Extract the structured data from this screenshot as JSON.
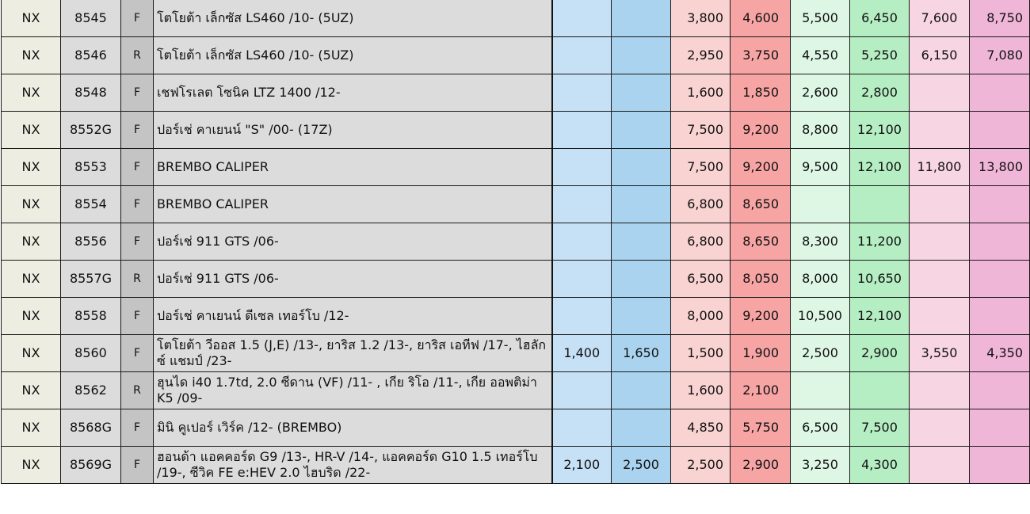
{
  "rows": [
    {
      "brand": "NX",
      "code": "8545",
      "pos": "F",
      "desc": "โตโยต้า เล็กซัส LS460 /10- (5UZ)",
      "prices": [
        "",
        "",
        "3,800",
        "4,600",
        "5,500",
        "6,450",
        "7,600",
        "8,750"
      ]
    },
    {
      "brand": "NX",
      "code": "8546",
      "pos": "R",
      "desc": "โตโยต้า เล็กซัส LS460 /10- (5UZ)",
      "prices": [
        "",
        "",
        "2,950",
        "3,750",
        "4,550",
        "5,250",
        "6,150",
        "7,080"
      ]
    },
    {
      "brand": "NX",
      "code": "8548",
      "pos": "F",
      "desc": "เชฟโรเลต โซนิค LTZ 1400 /12-",
      "prices": [
        "",
        "",
        "1,600",
        "1,850",
        "2,600",
        "2,800",
        "",
        ""
      ]
    },
    {
      "brand": "NX",
      "code": "8552G",
      "pos": "F",
      "desc": "ปอร์เช่ คาเยนน์ \"S\" /00- (17Z)",
      "prices": [
        "",
        "",
        "7,500",
        "9,200",
        "8,800",
        "12,100",
        "",
        ""
      ]
    },
    {
      "brand": "NX",
      "code": "8553",
      "pos": "F",
      "desc": "BREMBO CALIPER",
      "prices": [
        "",
        "",
        "7,500",
        "9,200",
        "9,500",
        "12,100",
        "11,800",
        "13,800"
      ]
    },
    {
      "brand": "NX",
      "code": "8554",
      "pos": "F",
      "desc": "BREMBO CALIPER",
      "prices": [
        "",
        "",
        "6,800",
        "8,650",
        "",
        "",
        "",
        ""
      ]
    },
    {
      "brand": "NX",
      "code": "8556",
      "pos": "F",
      "desc": "ปอร์เช่ 911 GTS /06-",
      "prices": [
        "",
        "",
        "6,800",
        "8,650",
        "8,300",
        "11,200",
        "",
        ""
      ]
    },
    {
      "brand": "NX",
      "code": "8557G",
      "pos": "R",
      "desc": "ปอร์เช่ 911 GTS /06-",
      "prices": [
        "",
        "",
        "6,500",
        "8,050",
        "8,000",
        "10,650",
        "",
        ""
      ]
    },
    {
      "brand": "NX",
      "code": "8558",
      "pos": "F",
      "desc": "ปอร์เช่ คาเยนน์ ดีเซล เทอร์โบ /12-",
      "prices": [
        "",
        "",
        "8,000",
        "9,200",
        "10,500",
        "12,100",
        "",
        ""
      ]
    },
    {
      "brand": "NX",
      "code": "8560",
      "pos": "F",
      "desc": "โตโยต้า วีออส 1.5 (J,E) /13-, ยาริส 1.2 /13-, ยาริส เอทีฟ /17-, ไฮลักซ์ แชมป์ /23-",
      "prices": [
        "1,400",
        "1,650",
        "1,500",
        "1,900",
        "2,500",
        "2,900",
        "3,550",
        "4,350"
      ]
    },
    {
      "brand": "NX",
      "code": "8562",
      "pos": "R",
      "desc": "ฮุนได i40 1.7td, 2.0 ซีดาน (VF) /11- , เกีย ริโอ /11-, เกีย ออพติม่า K5 /09-",
      "prices": [
        "",
        "",
        "1,600",
        "2,100",
        "",
        "",
        "",
        ""
      ]
    },
    {
      "brand": "NX",
      "code": "8568G",
      "pos": "F",
      "desc": "มินิ คูเปอร์ เวิร์ค /12- (BREMBO)",
      "prices": [
        "",
        "",
        "4,850",
        "5,750",
        "6,500",
        "7,500",
        "",
        ""
      ]
    },
    {
      "brand": "NX",
      "code": "8569G",
      "pos": "F",
      "desc": "ฮอนด้า แอคคอร์ด G9 /13-, HR-V /14-, แอคคอร์ด G10 1.5 เทอร์โบ /19-, ซีวิค FE e:HEV 2.0 ไฮบริด /22-",
      "prices": [
        "2,100",
        "2,500",
        "2,500",
        "2,900",
        "3,250",
        "4,300",
        "",
        ""
      ]
    }
  ]
}
